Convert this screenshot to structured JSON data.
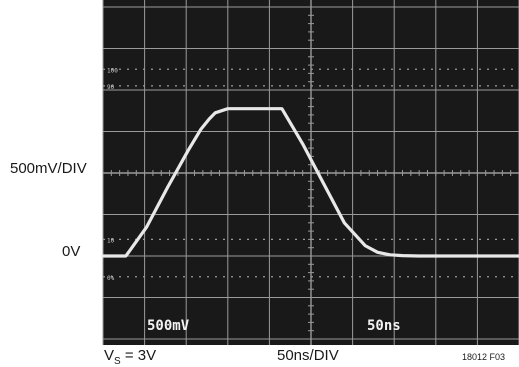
{
  "labels": {
    "vertical_scale": "500mV/DIV",
    "zero_level": "0V",
    "supply_prefix": "V",
    "supply_subscript": "S",
    "supply_suffix": " = 3V",
    "time_scale": "50ns/DIV",
    "figure_code": "18012 F03"
  },
  "scope": {
    "channel_readout": "500mV",
    "timebase_readout": "50ns",
    "marks": [
      "100",
      "90",
      "10",
      "0%"
    ]
  },
  "colors": {
    "screen_background": "#191919",
    "grid": "#9a9a9a",
    "trace": "#e8e8e8"
  },
  "chart_data": {
    "type": "line",
    "xlabel": "50ns/DIV",
    "ylabel": "500mV/DIV",
    "x_divisions": 10,
    "y_divisions": 8,
    "series": [
      {
        "x": [
          0,
          0.55,
          1.05,
          1.55,
          2.05,
          2.35,
          2.55,
          2.7,
          3.0,
          4.3,
          4.8,
          5.3,
          5.8,
          6.3,
          6.6,
          6.9,
          7.2,
          7.6,
          8.3,
          10
        ],
        "y": [
          0,
          0,
          0.7,
          1.65,
          2.55,
          3.05,
          3.3,
          3.45,
          3.55,
          3.55,
          2.7,
          1.75,
          0.8,
          0.25,
          0.09,
          0.03,
          0.01,
          0,
          0,
          0
        ]
      }
    ]
  }
}
